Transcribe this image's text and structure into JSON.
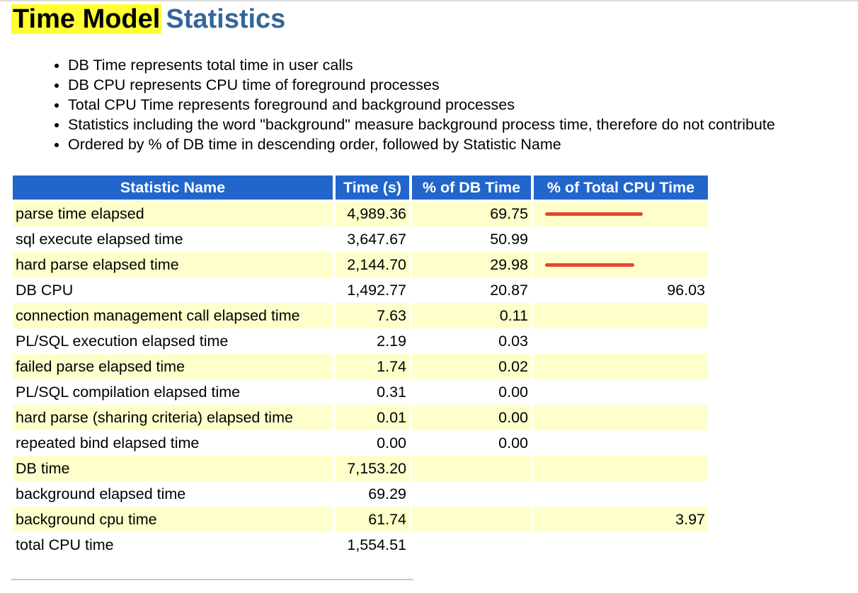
{
  "title": {
    "highlighted": "Time Model",
    "rest": "Statistics"
  },
  "notes": [
    "DB Time represents total time in user calls",
    "DB CPU represents CPU time of foreground processes",
    "Total CPU Time represents foreground and background processes",
    "Statistics including the word \"background\" measure background process time, therefore do not contribute",
    "Ordered by % of DB time in descending order, followed by Statistic Name"
  ],
  "table": {
    "headers": {
      "name": "Statistic Name",
      "time": "Time (s)",
      "pct_db": "% of DB Time",
      "pct_cpu": "% of Total CPU Time"
    },
    "rows": [
      {
        "name": "parse time elapsed",
        "time": "4,989.36",
        "pct_db": "69.75",
        "pct_cpu": "",
        "redline": true
      },
      {
        "name": "sql execute elapsed time",
        "time": "3,647.67",
        "pct_db": "50.99",
        "pct_cpu": ""
      },
      {
        "name": "hard parse elapsed time",
        "time": "2,144.70",
        "pct_db": "29.98",
        "pct_cpu": "",
        "redline": true
      },
      {
        "name": "DB CPU",
        "time": "1,492.77",
        "pct_db": "20.87",
        "pct_cpu": "96.03"
      },
      {
        "name": "connection management call elapsed time",
        "time": "7.63",
        "pct_db": "0.11",
        "pct_cpu": ""
      },
      {
        "name": "PL/SQL execution elapsed time",
        "time": "2.19",
        "pct_db": "0.03",
        "pct_cpu": ""
      },
      {
        "name": "failed parse elapsed time",
        "time": "1.74",
        "pct_db": "0.02",
        "pct_cpu": ""
      },
      {
        "name": "PL/SQL compilation elapsed time",
        "time": "0.31",
        "pct_db": "0.00",
        "pct_cpu": ""
      },
      {
        "name": "hard parse (sharing criteria) elapsed time",
        "time": "0.01",
        "pct_db": "0.00",
        "pct_cpu": ""
      },
      {
        "name": "repeated bind elapsed time",
        "time": "0.00",
        "pct_db": "0.00",
        "pct_cpu": ""
      },
      {
        "name": "DB time",
        "time": "7,153.20",
        "pct_db": "",
        "pct_cpu": ""
      },
      {
        "name": "background elapsed time",
        "time": "69.29",
        "pct_db": "",
        "pct_cpu": ""
      },
      {
        "name": "background cpu time",
        "time": "61.74",
        "pct_db": "",
        "pct_cpu": "3.97"
      },
      {
        "name": "total CPU time",
        "time": "1,554.51",
        "pct_db": "",
        "pct_cpu": ""
      }
    ]
  },
  "colors": {
    "title_highlight": "#ffff33",
    "title_blue": "#336699",
    "header_blue": "#2266cc",
    "row_highlight": "#ffffcc",
    "annotation_red": "#e8452f"
  }
}
